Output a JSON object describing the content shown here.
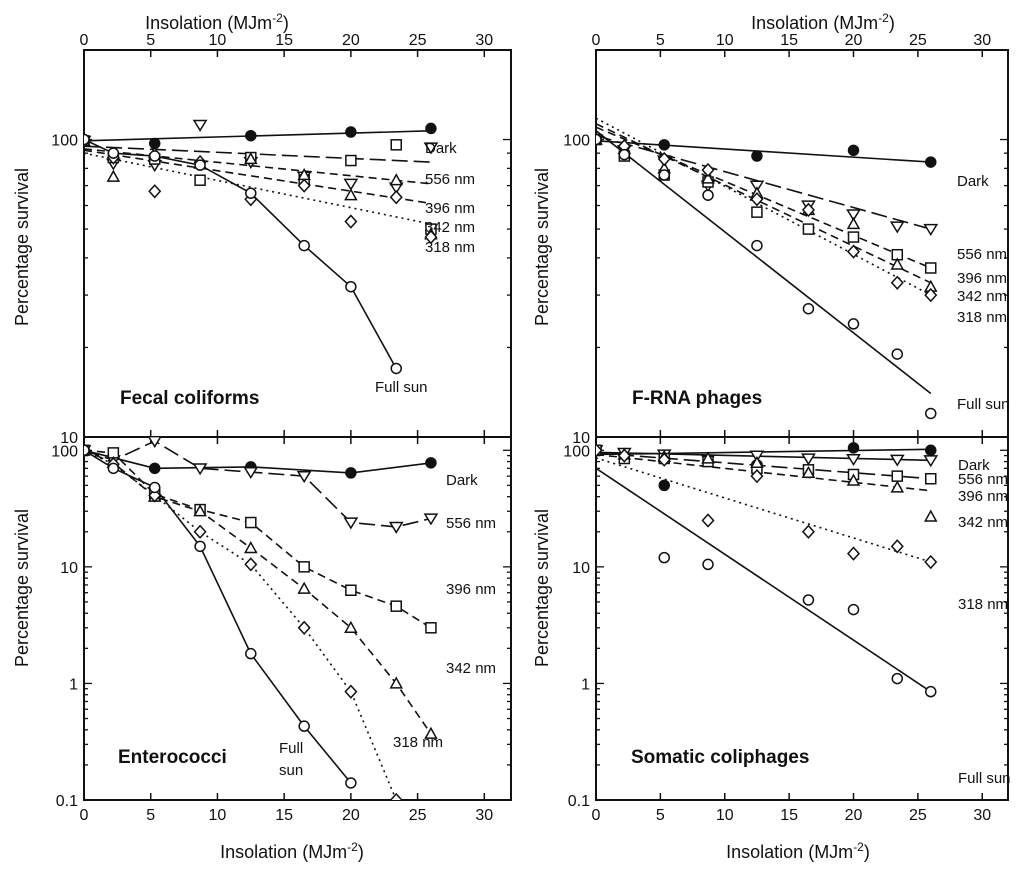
{
  "axes": {
    "top_label_text": "Insolation (MJm",
    "bottom_label_text": "Insolation (MJm",
    "exponent": "-2",
    "close": ")",
    "ylabel": "Percentage survival",
    "x_ticks": [
      "0",
      "5",
      "10",
      "15",
      "20",
      "25",
      "30"
    ],
    "y_ticks_upper": [
      "100",
      "10"
    ],
    "y_ticks_lower": [
      "100",
      "10",
      "1",
      "0.1"
    ]
  },
  "chart_data": [
    {
      "type": "line",
      "title": "Fecal coliforms",
      "xlim": [
        0,
        32
      ],
      "ylim": [
        10,
        200
      ],
      "yscale": "log",
      "series": [
        {
          "name": "Dark",
          "marker": "filled-circle",
          "line": "solid",
          "x": [
            0,
            5.3,
            12.5,
            20,
            26
          ],
          "y": [
            100,
            97,
            103,
            106,
            109
          ]
        },
        {
          "name": "556 nm",
          "marker": "triangle-down",
          "line": "solid",
          "x": [
            0,
            2.2,
            5.3,
            8.7,
            12.5,
            16.5,
            20,
            23.4,
            26
          ],
          "y": [
            99,
            83,
            82,
            112,
            84,
            75,
            71,
            69,
            94
          ]
        },
        {
          "name": "396 nm",
          "marker": "square",
          "line": "long-dash",
          "x": [
            0,
            2.2,
            5.3,
            8.7,
            12.5,
            16.5,
            20,
            23.4,
            26
          ],
          "y": [
            99,
            87,
            86,
            73,
            87,
            73,
            85,
            96,
            50
          ]
        },
        {
          "name": "342 nm",
          "marker": "triangle-up",
          "line": "dash",
          "x": [
            0,
            2.2,
            5.3,
            8.7,
            12.5,
            16.5,
            20,
            23.4,
            26
          ],
          "y": [
            99,
            75,
            90,
            83,
            86,
            76,
            65,
            73,
            48
          ]
        },
        {
          "name": "318 nm",
          "marker": "diamond",
          "line": "dotted",
          "x": [
            0,
            2.2,
            5.3,
            8.7,
            12.5,
            16.5,
            20,
            23.4,
            26
          ],
          "y": [
            99,
            87,
            67,
            84,
            63,
            70,
            53,
            64,
            47
          ]
        },
        {
          "name": "Full sun",
          "marker": "open-circle",
          "line": "solid",
          "x": [
            0,
            2.2,
            5.3,
            8.7,
            12.5,
            16.5,
            20,
            23.4
          ],
          "y": [
            100,
            90,
            88,
            82,
            66,
            44,
            32,
            17
          ]
        }
      ],
      "fit_lines": [
        {
          "series": "Dark",
          "style": "solid",
          "x": [
            0,
            26
          ],
          "y": [
            99,
            107
          ]
        },
        {
          "series": "556 nm",
          "style": "long-dash",
          "x": [
            0,
            26
          ],
          "y": [
            95,
            84
          ]
        },
        {
          "series": "396 nm",
          "style": "dash",
          "x": [
            0,
            26
          ],
          "y": [
            93,
            71
          ]
        },
        {
          "series": "342 nm",
          "style": "dash",
          "x": [
            0,
            26
          ],
          "y": [
            92,
            61
          ]
        },
        {
          "series": "318 nm",
          "style": "dotted",
          "x": [
            0,
            26
          ],
          "y": [
            90,
            52
          ]
        },
        {
          "series": "Full sun",
          "style": "solid",
          "x": [
            0,
            2.2,
            5.3,
            8.7,
            12.5,
            16.5,
            20,
            23.4
          ],
          "y": [
            100,
            90,
            88,
            82,
            66,
            44,
            32,
            17
          ]
        }
      ],
      "series_labels": [
        "Dark",
        "556 nm",
        "396 nm",
        "342 nm",
        "318 nm",
        "Full sun"
      ]
    },
    {
      "type": "line",
      "title": "F-RNA phages",
      "xlim": [
        0,
        32
      ],
      "ylim": [
        10,
        200
      ],
      "yscale": "log",
      "series": [
        {
          "name": "Dark",
          "marker": "filled-circle",
          "line": "solid",
          "x": [
            0,
            5.3,
            12.5,
            20,
            26
          ],
          "y": [
            100,
            96,
            88,
            92,
            84
          ]
        },
        {
          "name": "556 nm",
          "marker": "triangle-down",
          "line": "long-dash",
          "x": [
            0,
            2.2,
            5.3,
            8.7,
            12.5,
            16.5,
            20,
            23.4,
            26
          ],
          "y": [
            100,
            92,
            85,
            70,
            70,
            60,
            56,
            51,
            50
          ]
        },
        {
          "name": "396 nm",
          "marker": "square",
          "line": "dash",
          "x": [
            0,
            2.2,
            5.3,
            8.7,
            12.5,
            16.5,
            20,
            23.4,
            26
          ],
          "y": [
            100,
            88,
            76,
            72,
            57,
            50,
            47,
            41,
            37
          ]
        },
        {
          "name": "342 nm",
          "marker": "triangle-up",
          "line": "dash",
          "x": [
            0,
            2.2,
            5.3,
            8.7,
            12.5,
            16.5,
            20,
            23.4,
            26
          ],
          "y": [
            100,
            93,
            80,
            74,
            66,
            58,
            52,
            38,
            32
          ]
        },
        {
          "name": "318 nm",
          "marker": "diamond",
          "line": "dotted",
          "x": [
            0,
            2.2,
            5.3,
            8.7,
            12.5,
            16.5,
            20,
            23.4,
            26
          ],
          "y": [
            100,
            95,
            86,
            79,
            63,
            58,
            42,
            33,
            30
          ]
        },
        {
          "name": "Full sun",
          "marker": "open-circle",
          "line": "solid",
          "x": [
            0,
            2.2,
            5.3,
            8.7,
            12.5,
            16.5,
            20,
            23.4,
            26
          ],
          "y": [
            100,
            89,
            76,
            65,
            44,
            27,
            24,
            19,
            12
          ]
        }
      ],
      "fit_lines": [
        {
          "series": "Dark",
          "style": "solid",
          "x": [
            0,
            26
          ],
          "y": [
            99,
            84
          ]
        },
        {
          "series": "556 nm",
          "style": "long-dash",
          "x": [
            0,
            26
          ],
          "y": [
            103,
            50
          ]
        },
        {
          "series": "396 nm",
          "style": "dash",
          "x": [
            0,
            26
          ],
          "y": [
            110,
            37
          ]
        },
        {
          "series": "342 nm",
          "style": "dash",
          "x": [
            0,
            26
          ],
          "y": [
            113,
            33
          ]
        },
        {
          "series": "318 nm",
          "style": "dotted",
          "x": [
            0,
            26
          ],
          "y": [
            118,
            30
          ]
        },
        {
          "series": "Full sun",
          "style": "solid",
          "x": [
            0,
            26
          ],
          "y": [
            107,
            14
          ]
        }
      ],
      "series_labels": [
        "Dark",
        "556 nm",
        "396 nm",
        "342 nm",
        "318 nm",
        "Full sun"
      ]
    },
    {
      "type": "line",
      "title": "Enterococci",
      "xlim": [
        0,
        32
      ],
      "ylim": [
        0.1,
        130
      ],
      "yscale": "log",
      "series": [
        {
          "name": "Dark",
          "marker": "filled-circle",
          "line": "solid",
          "x": [
            0,
            5.3,
            12.5,
            20,
            26
          ],
          "y": [
            100,
            70,
            72,
            64,
            78
          ]
        },
        {
          "name": "556 nm",
          "marker": "triangle-down",
          "line": "long-dash",
          "x": [
            0,
            2.2,
            5.3,
            8.7,
            12.5,
            16.5,
            20,
            23.4,
            26
          ],
          "y": [
            100,
            82,
            120,
            70,
            65,
            60,
            24,
            22,
            26
          ]
        },
        {
          "name": "396 nm",
          "marker": "square",
          "line": "dash",
          "x": [
            0,
            2.2,
            5.3,
            8.7,
            12.5,
            16.5,
            20,
            23.4,
            26
          ],
          "y": [
            100,
            95,
            42,
            31,
            24,
            10,
            6.3,
            4.6,
            3.0
          ]
        },
        {
          "name": "342 nm",
          "marker": "triangle-up",
          "line": "dash",
          "x": [
            0,
            2.2,
            5.3,
            8.7,
            12.5,
            16.5,
            20,
            23.4,
            26
          ],
          "y": [
            100,
            78,
            40,
            30,
            14.5,
            6.5,
            3.0,
            1.0,
            0.37
          ]
        },
        {
          "name": "318 nm",
          "marker": "diamond",
          "line": "dotted",
          "x": [
            0,
            2.2,
            5.3,
            8.7,
            12.5,
            16.5,
            20,
            23.4
          ],
          "y": [
            100,
            76,
            41,
            20,
            10.5,
            3.0,
            0.85,
            0.1
          ]
        },
        {
          "name": "Full sun",
          "marker": "open-circle",
          "line": "solid",
          "x": [
            0,
            2.2,
            5.3,
            8.7,
            12.5,
            16.5,
            20
          ],
          "y": [
            100,
            70,
            48,
            15,
            1.8,
            0.43,
            0.14
          ]
        }
      ],
      "series_labels": [
        "Dark",
        "556 nm",
        "396 nm",
        "342 nm",
        "318 nm",
        "Full sun"
      ]
    },
    {
      "type": "line",
      "title": "Somatic coliphages",
      "xlim": [
        0,
        32
      ],
      "ylim": [
        0.1,
        130
      ],
      "yscale": "log",
      "series": [
        {
          "name": "Dark",
          "marker": "filled-circle",
          "line": "solid",
          "x": [
            0,
            5.3,
            12.5,
            20,
            26
          ],
          "y": [
            100,
            50,
            75,
            105,
            100
          ]
        },
        {
          "name": "556 nm",
          "marker": "triangle-down",
          "line": "solid",
          "x": [
            0,
            2.2,
            5.3,
            8.7,
            12.5,
            16.5,
            20,
            23.4,
            26
          ],
          "y": [
            100,
            95,
            92,
            83,
            90,
            85,
            84,
            83,
            82
          ]
        },
        {
          "name": "396 nm",
          "marker": "square",
          "line": "long-dash",
          "x": [
            0,
            2.2,
            5.3,
            8.7,
            12.5,
            16.5,
            20,
            23.4,
            26
          ],
          "y": [
            100,
            85,
            85,
            80,
            70,
            68,
            62,
            60,
            57
          ]
        },
        {
          "name": "342 nm",
          "marker": "triangle-up",
          "line": "dash",
          "x": [
            0,
            2.2,
            5.3,
            8.7,
            12.5,
            16.5,
            20,
            23.4,
            26
          ],
          "y": [
            100,
            92,
            88,
            85,
            78,
            64,
            55,
            48,
            27
          ]
        },
        {
          "name": "318 nm",
          "marker": "diamond",
          "line": "dotted",
          "x": [
            0,
            2.2,
            5.3,
            8.7,
            12.5,
            16.5,
            20,
            23.4,
            26
          ],
          "y": [
            100,
            90,
            83,
            25,
            60,
            20,
            13,
            15,
            11
          ]
        },
        {
          "name": "Full sun",
          "marker": "open-circle",
          "line": "solid",
          "x": [
            5.3,
            8.7,
            16.5,
            20,
            23.4,
            26
          ],
          "y": [
            12,
            10.5,
            5.2,
            4.3,
            1.1,
            0.85
          ]
        }
      ],
      "fit_lines": [
        {
          "series": "Dark",
          "style": "solid",
          "x": [
            0,
            26
          ],
          "y": [
            92,
            102
          ]
        },
        {
          "series": "556 nm",
          "style": "solid",
          "x": [
            0,
            26
          ],
          "y": [
            96,
            82
          ]
        },
        {
          "series": "396 nm",
          "style": "long-dash",
          "x": [
            0,
            26
          ],
          "y": [
            95,
            57
          ]
        },
        {
          "series": "342 nm",
          "style": "dash",
          "x": [
            0,
            26
          ],
          "y": [
            92,
            45
          ]
        },
        {
          "series": "318 nm",
          "style": "dotted",
          "x": [
            0,
            26
          ],
          "y": [
            86,
            11
          ]
        },
        {
          "series": "Full sun",
          "style": "solid",
          "x": [
            0,
            26
          ],
          "y": [
            70,
            0.85
          ]
        }
      ],
      "series_labels": [
        "Dark",
        "556 nm",
        "396 nm",
        "342 nm",
        "318 nm",
        "Full sun"
      ]
    }
  ]
}
